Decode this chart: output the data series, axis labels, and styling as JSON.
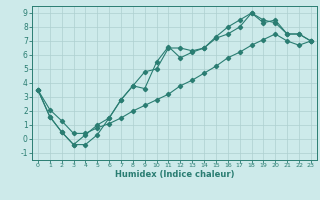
{
  "xlabel": "Humidex (Indice chaleur)",
  "xlim": [
    -0.5,
    23.5
  ],
  "ylim": [
    -1.5,
    9.5
  ],
  "xticks": [
    0,
    1,
    2,
    3,
    4,
    5,
    6,
    7,
    8,
    9,
    10,
    11,
    12,
    13,
    14,
    15,
    16,
    17,
    18,
    19,
    20,
    21,
    22,
    23
  ],
  "yticks": [
    -1,
    0,
    1,
    2,
    3,
    4,
    5,
    6,
    7,
    8,
    9
  ],
  "line_color": "#2a7d72",
  "bg_color": "#cdeaea",
  "grid_color": "#aed0d0",
  "line1_x": [
    0,
    1,
    2,
    3,
    4,
    5,
    6,
    7,
    8,
    9,
    10,
    11,
    12,
    13,
    14,
    15,
    16,
    17,
    18,
    19,
    20,
    21,
    22,
    23
  ],
  "line1_y": [
    3.5,
    1.6,
    0.5,
    -0.4,
    -0.4,
    0.3,
    1.5,
    2.8,
    3.8,
    3.6,
    5.5,
    6.6,
    5.8,
    6.2,
    6.5,
    7.2,
    7.5,
    8.0,
    9.0,
    8.5,
    8.3,
    7.5,
    7.5,
    7.0
  ],
  "line2_x": [
    0,
    1,
    2,
    3,
    4,
    5,
    6,
    7,
    8,
    9,
    10,
    11,
    12,
    13,
    14,
    15,
    16,
    17,
    18,
    19,
    20,
    21,
    22,
    23
  ],
  "line2_y": [
    3.5,
    1.6,
    0.5,
    -0.4,
    0.3,
    1.0,
    1.5,
    2.8,
    3.8,
    4.8,
    5.0,
    6.5,
    6.5,
    6.3,
    6.5,
    7.3,
    8.0,
    8.5,
    9.0,
    8.3,
    8.5,
    7.5,
    7.5,
    7.0
  ],
  "line3_x": [
    0,
    1,
    2,
    3,
    4,
    5,
    6,
    7,
    8,
    9,
    10,
    11,
    12,
    13,
    14,
    15,
    16,
    17,
    18,
    19,
    20,
    21,
    22,
    23
  ],
  "line3_y": [
    3.5,
    2.1,
    1.3,
    0.4,
    0.4,
    0.8,
    1.1,
    1.5,
    2.0,
    2.4,
    2.8,
    3.2,
    3.8,
    4.2,
    4.7,
    5.2,
    5.8,
    6.2,
    6.7,
    7.1,
    7.5,
    7.0,
    6.7,
    7.0
  ]
}
